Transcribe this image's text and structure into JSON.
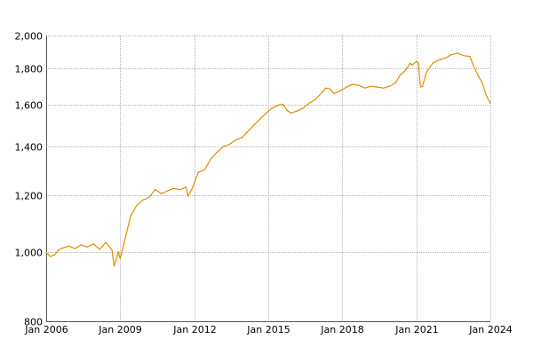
{
  "chart_data": {
    "type": "line",
    "title": "",
    "xlabel": "",
    "ylabel": "",
    "y_scale": "log",
    "ylim": [
      800,
      2000
    ],
    "xlim": [
      "2006-01",
      "2024-01"
    ],
    "grid": true,
    "legend": "none",
    "x_ticks": [
      "Jan 2006",
      "Jan 2009",
      "Jan 2012",
      "Jan 2015",
      "Jan 2018",
      "Jan 2021",
      "Jan 2024"
    ],
    "y_ticks": [
      {
        "value": 800,
        "label": "800"
      },
      {
        "value": 1000,
        "label": "1,000"
      },
      {
        "value": 1200,
        "label": "1,200"
      },
      {
        "value": 1400,
        "label": "1,400"
      },
      {
        "value": 1600,
        "label": "1,600"
      },
      {
        "value": 1800,
        "label": "1,800"
      },
      {
        "value": 2000,
        "label": "2,000"
      }
    ],
    "series": [
      {
        "color": "#e08c00",
        "points": [
          [
            "2006-01",
            998
          ],
          [
            "2006-03",
            985
          ],
          [
            "2006-05",
            990
          ],
          [
            "2006-07",
            1005
          ],
          [
            "2006-09",
            1012
          ],
          [
            "2006-12",
            1018
          ],
          [
            "2007-03",
            1010
          ],
          [
            "2007-06",
            1022
          ],
          [
            "2007-09",
            1015
          ],
          [
            "2007-12",
            1025
          ],
          [
            "2008-03",
            1008
          ],
          [
            "2008-06",
            1030
          ],
          [
            "2008-09",
            1005
          ],
          [
            "2008-10",
            955
          ],
          [
            "2008-11",
            972
          ],
          [
            "2008-12",
            1000
          ],
          [
            "2009-01",
            978
          ],
          [
            "2009-02",
            1005
          ],
          [
            "2009-04",
            1060
          ],
          [
            "2009-06",
            1120
          ],
          [
            "2009-09",
            1160
          ],
          [
            "2009-12",
            1180
          ],
          [
            "2010-03",
            1190
          ],
          [
            "2010-06",
            1220
          ],
          [
            "2010-09",
            1205
          ],
          [
            "2010-12",
            1215
          ],
          [
            "2011-03",
            1225
          ],
          [
            "2011-06",
            1220
          ],
          [
            "2011-09",
            1230
          ],
          [
            "2011-10",
            1195
          ],
          [
            "2011-12",
            1225
          ],
          [
            "2012-03",
            1290
          ],
          [
            "2012-06",
            1300
          ],
          [
            "2012-09",
            1345
          ],
          [
            "2012-12",
            1375
          ],
          [
            "2013-03",
            1400
          ],
          [
            "2013-06",
            1410
          ],
          [
            "2013-09",
            1430
          ],
          [
            "2013-12",
            1440
          ],
          [
            "2014-03",
            1470
          ],
          [
            "2014-06",
            1500
          ],
          [
            "2014-09",
            1530
          ],
          [
            "2014-12",
            1560
          ],
          [
            "2015-03",
            1585
          ],
          [
            "2015-06",
            1600
          ],
          [
            "2015-08",
            1605
          ],
          [
            "2015-10",
            1575
          ],
          [
            "2015-12",
            1560
          ],
          [
            "2016-03",
            1570
          ],
          [
            "2016-06",
            1585
          ],
          [
            "2016-09",
            1610
          ],
          [
            "2016-12",
            1630
          ],
          [
            "2017-03",
            1665
          ],
          [
            "2017-05",
            1690
          ],
          [
            "2017-07",
            1685
          ],
          [
            "2017-09",
            1660
          ],
          [
            "2017-12",
            1675
          ],
          [
            "2018-03",
            1695
          ],
          [
            "2018-06",
            1710
          ],
          [
            "2018-09",
            1705
          ],
          [
            "2018-12",
            1690
          ],
          [
            "2019-03",
            1700
          ],
          [
            "2019-06",
            1695
          ],
          [
            "2019-09",
            1690
          ],
          [
            "2019-12",
            1700
          ],
          [
            "2020-03",
            1720
          ],
          [
            "2020-05",
            1760
          ],
          [
            "2020-07",
            1780
          ],
          [
            "2020-09",
            1810
          ],
          [
            "2020-10",
            1830
          ],
          [
            "2020-11",
            1820
          ],
          [
            "2021-01",
            1840
          ],
          [
            "2021-02",
            1830
          ],
          [
            "2021-03",
            1695
          ],
          [
            "2021-04",
            1700
          ],
          [
            "2021-06",
            1780
          ],
          [
            "2021-09",
            1830
          ],
          [
            "2021-12",
            1850
          ],
          [
            "2022-03",
            1860
          ],
          [
            "2022-06",
            1880
          ],
          [
            "2022-09",
            1890
          ],
          [
            "2022-12",
            1875
          ],
          [
            "2023-03",
            1870
          ],
          [
            "2023-05",
            1810
          ],
          [
            "2023-07",
            1760
          ],
          [
            "2023-09",
            1720
          ],
          [
            "2023-11",
            1650
          ],
          [
            "2024-01",
            1610
          ]
        ]
      }
    ]
  }
}
